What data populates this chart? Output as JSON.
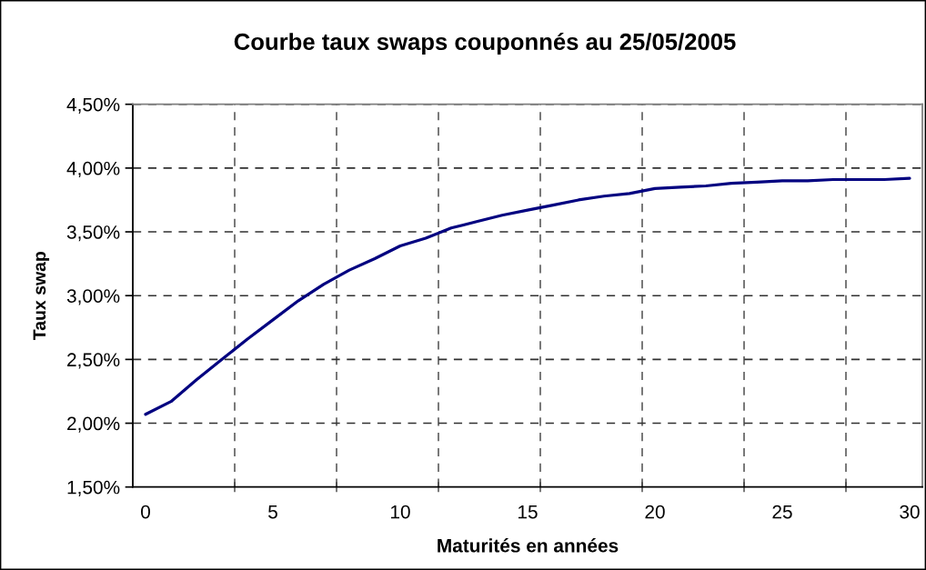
{
  "chart_data": {
    "type": "line",
    "title": "Courbe taux swaps couponnés au 25/05/2005",
    "xlabel": "Maturités en années",
    "ylabel": "Taux swap",
    "categories": [
      "0",
      null,
      null,
      null,
      null,
      "5",
      null,
      null,
      null,
      null,
      "10",
      null,
      null,
      null,
      null,
      "15",
      null,
      null,
      null,
      null,
      "20",
      null,
      null,
      null,
      null,
      "25",
      null,
      null,
      null,
      null,
      "30"
    ],
    "series": [
      {
        "color": "#000080",
        "values": [
          2.07,
          2.17,
          2.34,
          2.5,
          2.66,
          2.81,
          2.96,
          3.09,
          3.2,
          3.29,
          3.39,
          3.45,
          3.53,
          3.58,
          3.63,
          3.67,
          3.71,
          3.75,
          3.78,
          3.8,
          3.84,
          3.85,
          3.86,
          3.88,
          3.89,
          3.9,
          3.9,
          3.91,
          3.91,
          3.91,
          3.92
        ]
      }
    ],
    "ylim": [
      1.5,
      4.5
    ],
    "yticks": [
      {
        "value": 1.5,
        "label": "1,50%"
      },
      {
        "value": 2.0,
        "label": "2,00%"
      },
      {
        "value": 2.5,
        "label": "2,50%"
      },
      {
        "value": 3.0,
        "label": "3,00%"
      },
      {
        "value": 3.5,
        "label": "3,50%"
      },
      {
        "value": 4.0,
        "label": "4,00%"
      },
      {
        "value": 4.5,
        "label": "4,50%"
      }
    ],
    "grid": true
  }
}
